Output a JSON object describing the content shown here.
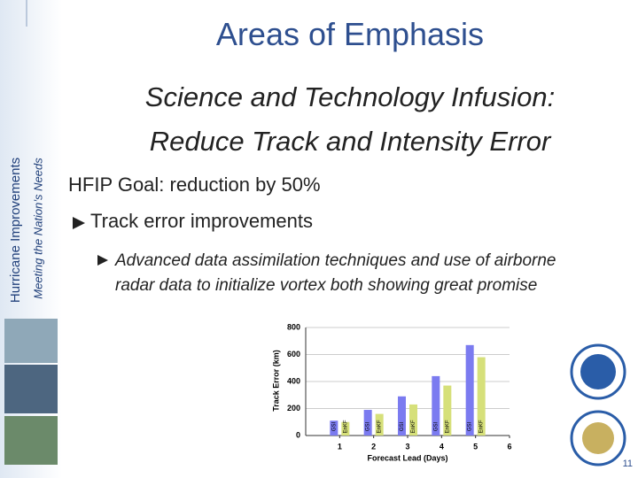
{
  "sidebar": {
    "title": "Hurricane Improvements",
    "subtitle": "Meeting the Nation’s Needs"
  },
  "header": {
    "title": "Areas of Emphasis",
    "subtitle": "Science and Technology Infusion:",
    "subtitle2": "Reduce Track and Intensity Error"
  },
  "goal": "HFIP Goal: reduction by 50%",
  "bullets": [
    {
      "text": "Track error improvements",
      "items": [
        "Advanced data assimilation techniques and use of airborne radar data to initialize vortex both showing great promise"
      ]
    }
  ],
  "chart_data": {
    "type": "bar",
    "y_label": "Track Error (km)",
    "x_label": "Forecast Lead (Days)",
    "x": [
      1,
      2,
      3,
      4,
      5
    ],
    "series": [
      {
        "name": "GSI",
        "color": "#7b7bf0",
        "values": [
          110,
          190,
          290,
          440,
          670
        ]
      },
      {
        "name": "EnKF",
        "color": "#d6e07a",
        "values": [
          100,
          160,
          230,
          370,
          580
        ]
      }
    ],
    "xlim": [
      0,
      6
    ],
    "xticks": [
      1,
      2,
      3,
      4,
      5,
      6
    ],
    "ylim": [
      0,
      800
    ],
    "yticks": [
      0,
      200,
      400,
      600,
      800
    ],
    "grid": true
  },
  "page_number": "11"
}
